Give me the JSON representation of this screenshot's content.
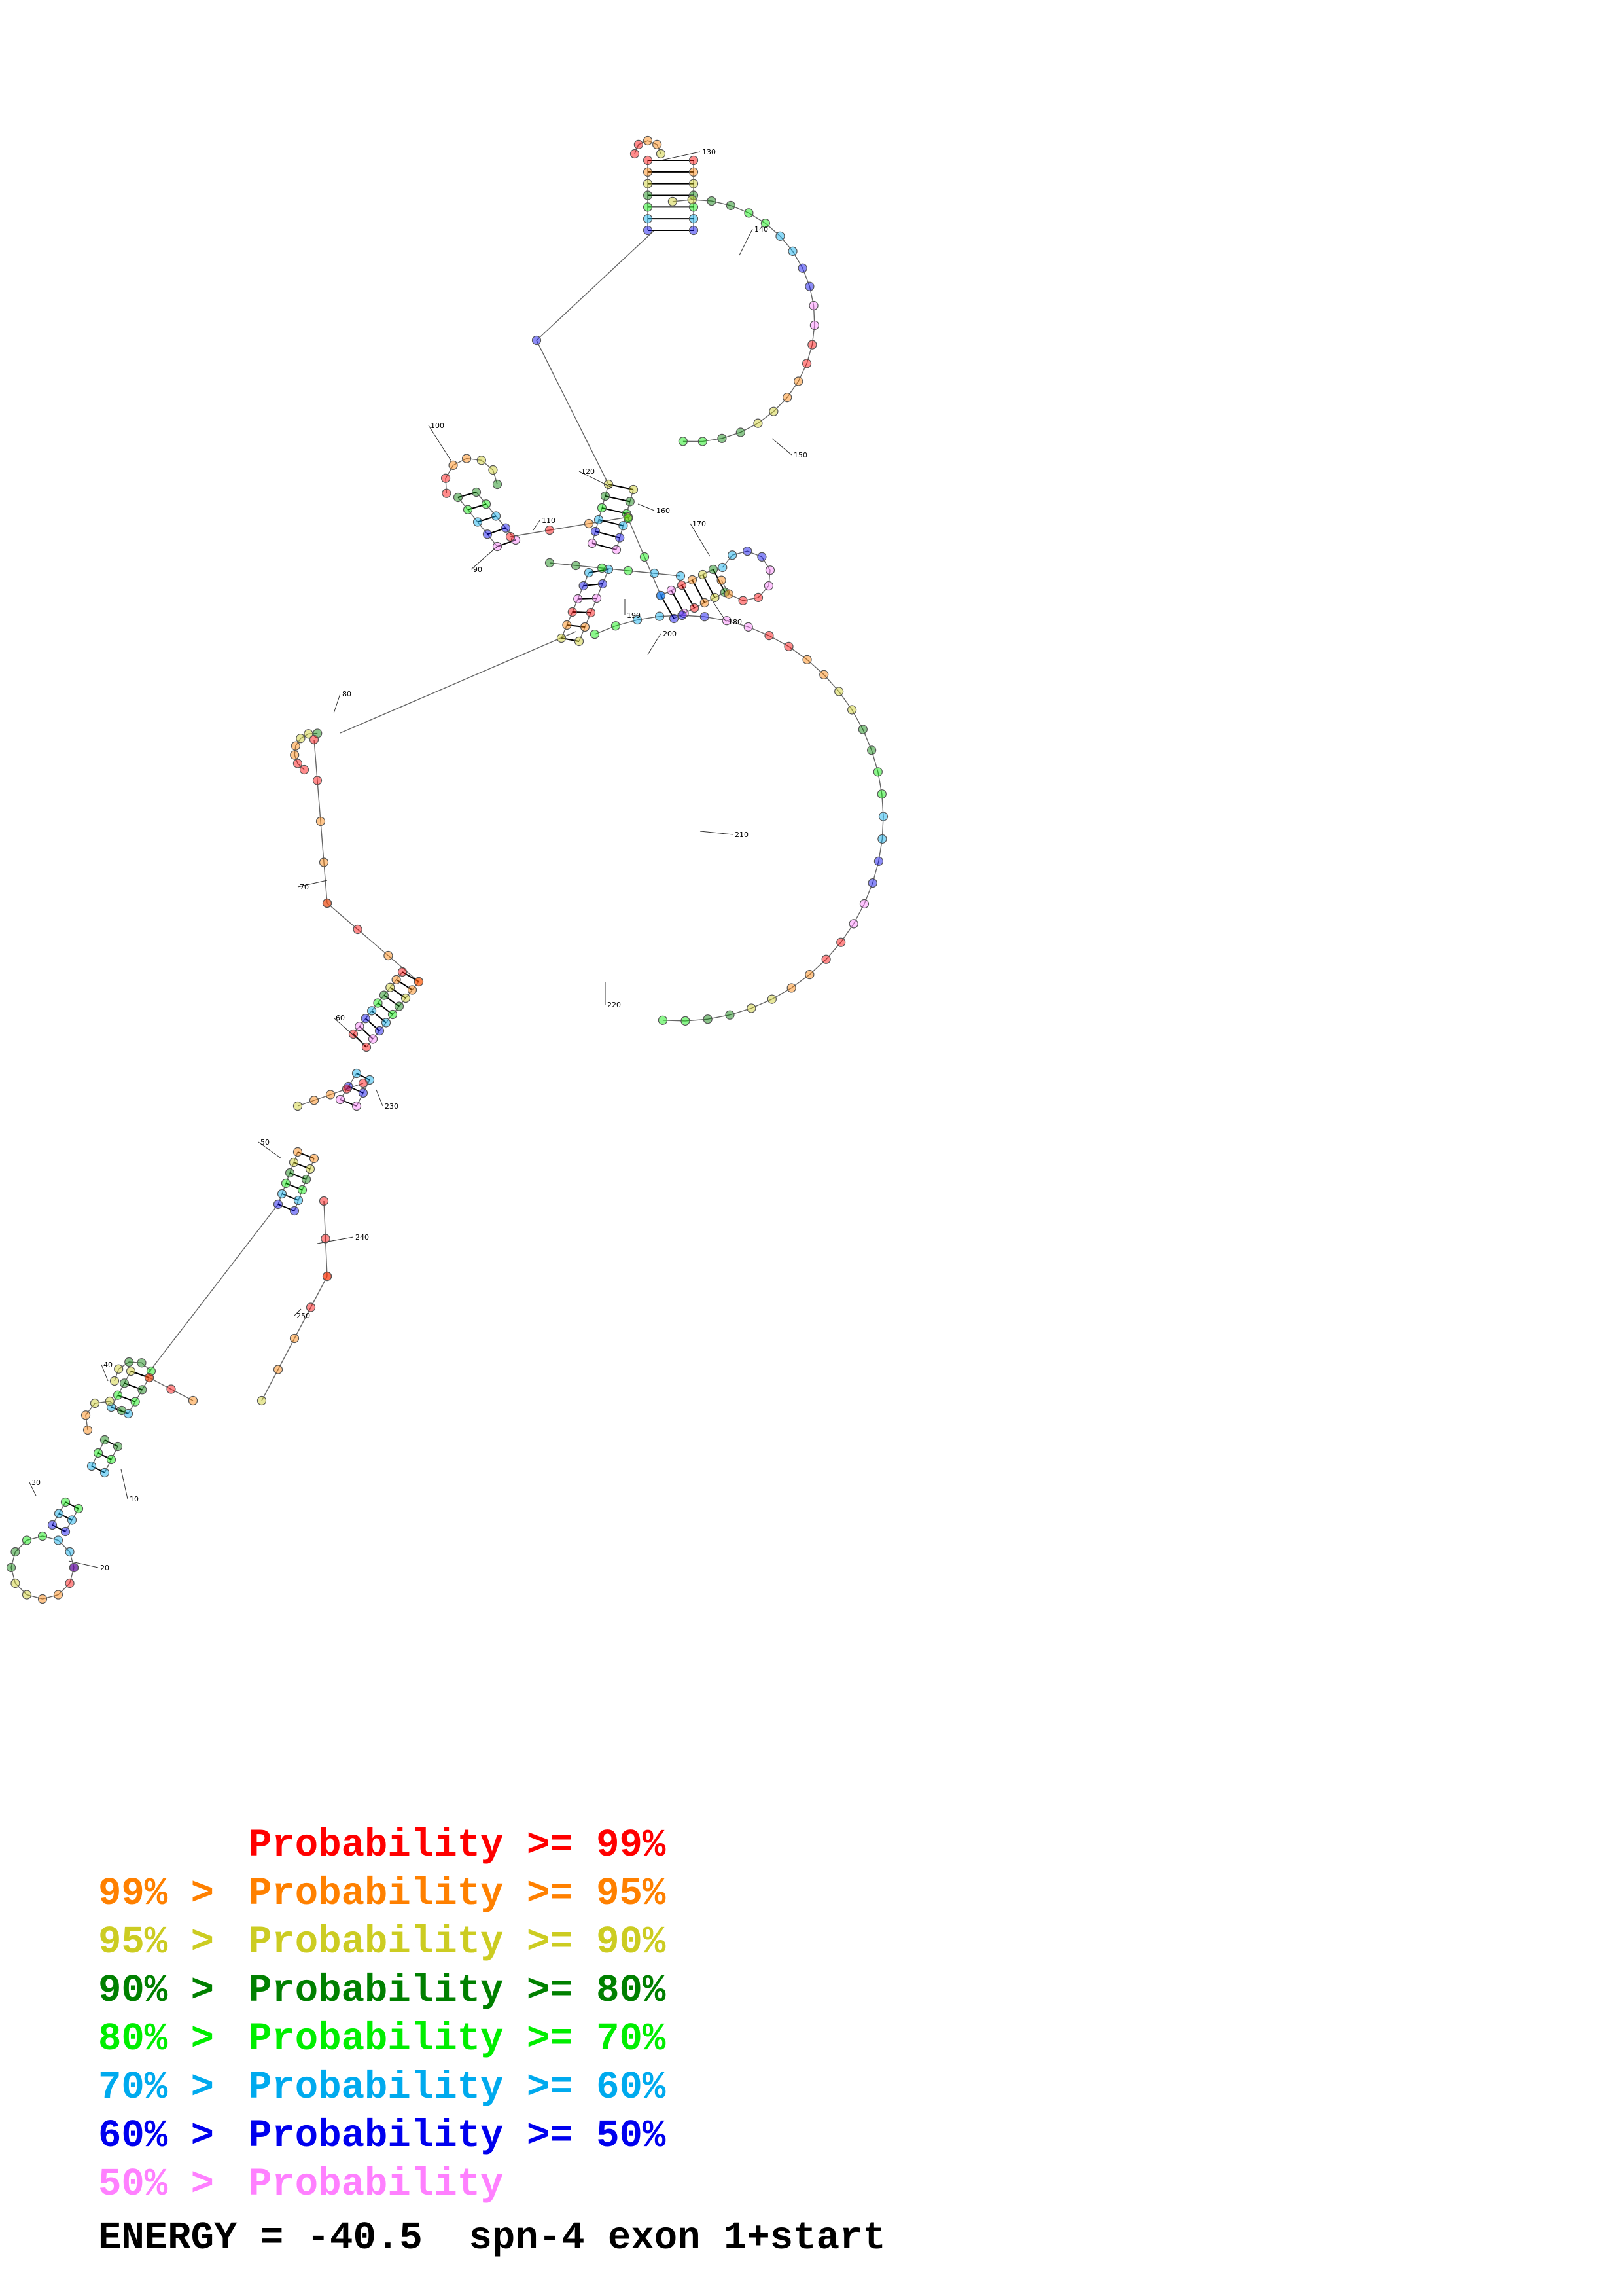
{
  "diagram": {
    "position_labels": [
      "10",
      "20",
      "30",
      "40",
      "50",
      "60",
      "70",
      "80",
      "90",
      "100",
      "110",
      "120",
      "130",
      "140",
      "150",
      "160",
      "170",
      "180",
      "190",
      "200",
      "210",
      "220",
      "230",
      "240",
      "250"
    ]
  },
  "legend": {
    "rows": [
      {
        "prefix": "",
        "text": "Probability >= 99%",
        "color": "#ff0000"
      },
      {
        "prefix": "99% >",
        "text": "Probability >= 95%",
        "color": "#ff8000"
      },
      {
        "prefix": "95% >",
        "text": "Probability >= 90%",
        "color": "#cccc22"
      },
      {
        "prefix": "90% >",
        "text": "Probability >= 80%",
        "color": "#008000"
      },
      {
        "prefix": "80% >",
        "text": "Probability >= 70%",
        "color": "#00ee00"
      },
      {
        "prefix": "70% >",
        "text": "Probability >= 60%",
        "color": "#00aaee"
      },
      {
        "prefix": "60% >",
        "text": "Probability >= 50%",
        "color": "#0000ee"
      },
      {
        "prefix": "50% >",
        "text": "Probability",
        "color": "#ff80ff"
      }
    ]
  },
  "footer": {
    "energy_label": "ENERGY = -40.5",
    "sequence_name": "spn-4 exon 1+start"
  }
}
